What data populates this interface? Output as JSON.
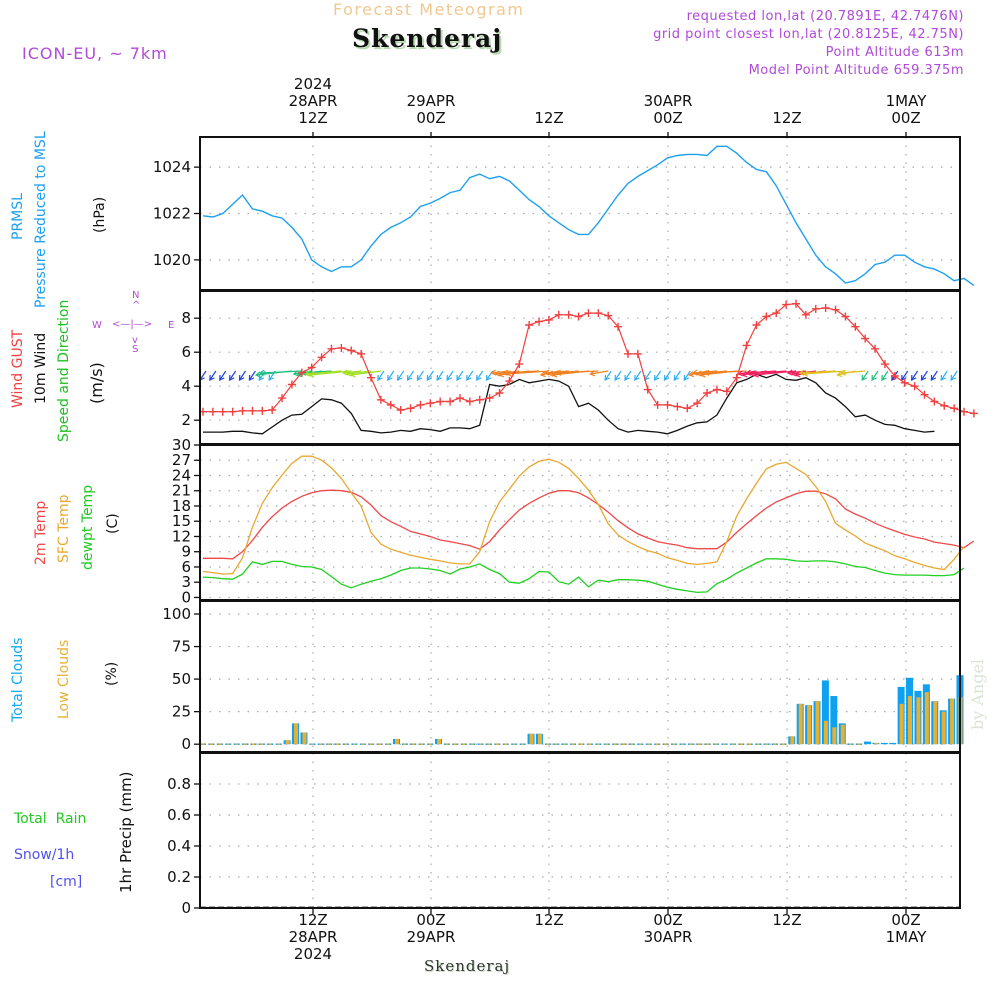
{
  "header": {
    "title": "Forecast Meteogram",
    "station": "Skenderaj",
    "model": "ICON-EU, ~ 7km",
    "requested": "requested lon,lat (20.7891E, 42.7476N)",
    "grid_point": "grid point closest lon,lat (20.8125E, 42.75N)",
    "point_altitude": "Point Altitude 613m",
    "model_altitude": "Model Point Altitude 659.375m"
  },
  "footer": {
    "station": "Skenderaj",
    "credit": "by Angel"
  },
  "top_axis": [
    {
      "l1": "2024",
      "l2": "28APR",
      "l3": "12Z"
    },
    {
      "l1": "",
      "l2": "29APR",
      "l3": "00Z"
    },
    {
      "l1": "",
      "l2": "",
      "l3": "12Z"
    },
    {
      "l1": "",
      "l2": "30APR",
      "l3": "00Z"
    },
    {
      "l1": "",
      "l2": "",
      "l3": "12Z"
    },
    {
      "l1": "",
      "l2": "1MAY",
      "l3": "00Z"
    }
  ],
  "bottom_axis": [
    {
      "l1": "12Z",
      "l2": "28APR",
      "l3": "2024"
    },
    {
      "l1": "00Z",
      "l2": "29APR",
      "l3": ""
    },
    {
      "l1": "12Z",
      "l2": "",
      "l3": ""
    },
    {
      "l1": "00Z",
      "l2": "30APR",
      "l3": ""
    },
    {
      "l1": "12Z",
      "l2": "",
      "l3": ""
    },
    {
      "l1": "00Z",
      "l2": "1MAY",
      "l3": ""
    }
  ],
  "labels": {
    "prmsl": "PRMSL",
    "pressure": "Pressure Reduced to MSL",
    "hpa": "(hPa)",
    "wind_gust": "Wind GUST",
    "wind_10m": "10m Wind",
    "speed_dir": "Speed and Direction",
    "ms": "(m/s)",
    "compass_n": "N",
    "compass_s": "S",
    "compass_w": "W",
    "compass_e": "E",
    "temp2m": "2m Temp",
    "sfc_temp": "SFC Temp",
    "dewpt": "dewpt Temp",
    "c": "(C)",
    "total_clouds": "Total Clouds",
    "low_clouds": "Low Clouds",
    "pct": "(%)",
    "total_rain": "Total  Rain",
    "snow": "Snow/1h",
    "cm": "[cm]",
    "precip": "1hr Precip (mm)"
  },
  "colors": {
    "pressure": "#1ea0f0",
    "gust": "#f04040",
    "wind": "#111111",
    "temp2m": "#f04848",
    "sfc": "#e8a830",
    "dewpt": "#20d020",
    "total_clouds": "#10a0f0",
    "low_clouds": "#e8b030",
    "rain": "#20c820",
    "snow": "#5050f0",
    "label_purple": "#b04ad8"
  },
  "chart_data": [
    {
      "type": "line",
      "title": "PRMSL Pressure Reduced to MSL",
      "ylabel": "(hPa)",
      "ylim": [
        1018.7,
        1025.3
      ],
      "yticks": [
        1020,
        1022,
        1024
      ],
      "time_start": "28APR 01Z",
      "time_step_hours": 1,
      "series": [
        {
          "name": "PRMSL",
          "values": [
            1021.9,
            1021.85,
            1022.0,
            1022.4,
            1022.8,
            1022.2,
            1022.1,
            1021.9,
            1021.8,
            1021.4,
            1020.9,
            1020.0,
            1019.7,
            1019.5,
            1019.7,
            1019.7,
            1020.0,
            1020.6,
            1021.1,
            1021.4,
            1021.6,
            1021.85,
            1022.3,
            1022.45,
            1022.65,
            1022.9,
            1023.0,
            1023.55,
            1023.7,
            1023.5,
            1023.6,
            1023.4,
            1023.0,
            1022.6,
            1022.3,
            1021.9,
            1021.6,
            1021.3,
            1021.1,
            1021.1,
            1021.6,
            1022.2,
            1022.8,
            1023.3,
            1023.6,
            1023.85,
            1024.1,
            1024.4,
            1024.5,
            1024.55,
            1024.55,
            1024.5,
            1024.9,
            1024.9,
            1024.6,
            1024.2,
            1023.9,
            1023.8,
            1023.2,
            1022.4,
            1021.6,
            1020.9,
            1020.2,
            1019.7,
            1019.4,
            1019.0,
            1019.1,
            1019.4,
            1019.8,
            1019.9,
            1020.2,
            1020.2,
            1019.9,
            1019.7,
            1019.6,
            1019.4,
            1019.1,
            1019.2,
            1018.9
          ]
        }
      ]
    },
    {
      "type": "line",
      "title": "Wind GUST / 10m Wind Speed and Direction",
      "ylabel": "(m/s)",
      "ylim": [
        0.6,
        9.6
      ],
      "yticks": [
        2,
        4,
        6,
        8
      ],
      "time_start": "28APR 01Z",
      "time_step_hours": 1,
      "series": [
        {
          "name": "Wind GUST",
          "values": [
            2.5,
            2.5,
            2.5,
            2.5,
            2.55,
            2.55,
            2.55,
            2.6,
            3.3,
            4.1,
            4.8,
            5.1,
            5.7,
            6.2,
            6.25,
            6.1,
            5.9,
            4.5,
            3.2,
            2.9,
            2.6,
            2.7,
            2.9,
            3.0,
            3.1,
            3.1,
            3.3,
            3.1,
            3.2,
            3.3,
            3.6,
            4.3,
            5.3,
            7.6,
            7.8,
            7.9,
            8.2,
            8.2,
            8.1,
            8.3,
            8.3,
            8.15,
            7.5,
            5.9,
            5.9,
            3.8,
            2.9,
            2.9,
            2.8,
            2.7,
            3.0,
            3.6,
            3.8,
            3.7,
            4.5,
            6.4,
            7.6,
            8.1,
            8.3,
            8.8,
            8.85,
            8.2,
            8.55,
            8.6,
            8.5,
            8.1,
            7.5,
            6.8,
            6.2,
            5.3,
            4.6,
            4.2,
            4.0,
            3.5,
            3.1,
            2.85,
            2.7,
            2.5,
            2.4
          ]
        },
        {
          "name": "10m Wind",
          "values": [
            1.3,
            1.3,
            1.3,
            1.35,
            1.35,
            1.25,
            1.2,
            1.6,
            2.0,
            2.3,
            2.35,
            2.8,
            3.25,
            3.2,
            3.0,
            2.4,
            1.4,
            1.35,
            1.25,
            1.3,
            1.4,
            1.35,
            1.5,
            1.45,
            1.35,
            1.55,
            1.55,
            1.5,
            1.7,
            4.1,
            4.0,
            4.1,
            4.4,
            4.2,
            4.3,
            4.4,
            4.3,
            4.0,
            2.8,
            3.0,
            2.6,
            2.0,
            1.5,
            1.3,
            1.4,
            1.35,
            1.3,
            1.2,
            1.4,
            1.65,
            1.85,
            1.9,
            2.3,
            3.3,
            4.2,
            4.4,
            4.7,
            4.5,
            4.7,
            4.4,
            4.35,
            4.5,
            4.2,
            3.6,
            3.3,
            2.8,
            2.2,
            2.3,
            2.0,
            1.75,
            1.7,
            1.5,
            1.4,
            1.3,
            1.35
          ]
        }
      ],
      "wind_direction_colors": [
        "#2040e0",
        "#30b0f0",
        "#20c080",
        "#a0e020",
        "#e0c020",
        "#f08020",
        "#f02060"
      ]
    },
    {
      "type": "line",
      "title": "2m Temp / SFC Temp / dewpt Temp",
      "ylabel": "(C)",
      "ylim": [
        -0.5,
        30
      ],
      "yticks": [
        0,
        3,
        6,
        9,
        12,
        15,
        18,
        21,
        24,
        27,
        30
      ],
      "time_start": "28APR 01Z",
      "time_step_hours": 1,
      "series": [
        {
          "name": "2m Temp",
          "values": [
            7.7,
            7.7,
            7.7,
            7.6,
            9.0,
            11.2,
            13.8,
            15.9,
            17.6,
            18.9,
            19.9,
            20.6,
            21.0,
            21.1,
            21.0,
            20.7,
            19.8,
            18.2,
            16.1,
            14.9,
            14.0,
            13.0,
            12.5,
            12.0,
            11.3,
            11.0,
            10.6,
            10.2,
            9.5,
            11.0,
            13.3,
            15.3,
            17.2,
            18.5,
            19.6,
            20.5,
            21.0,
            21.0,
            20.6,
            19.6,
            18.3,
            16.8,
            15.1,
            13.7,
            12.5,
            11.7,
            11.0,
            10.6,
            10.3,
            9.8,
            9.6,
            9.6,
            9.6,
            10.9,
            12.8,
            14.5,
            16.1,
            17.6,
            18.8,
            19.6,
            20.4,
            20.9,
            20.9,
            20.4,
            19.4,
            17.4,
            16.4,
            15.6,
            14.6,
            13.8,
            13.1,
            12.4,
            11.9,
            11.5,
            10.9,
            10.6,
            10.3,
            9.8,
            11.1
          ]
        },
        {
          "name": "SFC Temp",
          "values": [
            5.1,
            4.9,
            4.6,
            4.7,
            7.8,
            13.8,
            18.5,
            21.6,
            24.1,
            26.4,
            27.8,
            27.8,
            27.0,
            25.5,
            23.4,
            20.6,
            18.0,
            12.8,
            10.5,
            9.5,
            8.9,
            8.3,
            7.9,
            7.5,
            7.2,
            6.8,
            6.6,
            6.6,
            9.0,
            14.9,
            18.8,
            21.3,
            23.9,
            25.7,
            26.8,
            27.2,
            26.6,
            25.4,
            23.4,
            21.1,
            18.3,
            14.5,
            12.3,
            11.0,
            10.0,
            9.2,
            8.7,
            7.8,
            7.3,
            6.7,
            6.5,
            6.7,
            7.0,
            11.0,
            16.0,
            19.4,
            22.5,
            25.3,
            26.2,
            26.6,
            25.4,
            24.2,
            21.8,
            18.9,
            14.6,
            13.3,
            12.1,
            10.7,
            9.9,
            9.2,
            8.2,
            7.6,
            6.9,
            6.3,
            5.8,
            5.5,
            7.5,
            10.0
          ]
        },
        {
          "name": "dewpt Temp",
          "values": [
            4.0,
            3.9,
            3.7,
            3.6,
            4.6,
            7.0,
            6.5,
            7.1,
            7.1,
            6.5,
            6.1,
            6.0,
            5.5,
            4.1,
            2.6,
            1.9,
            2.6,
            3.2,
            3.7,
            4.4,
            5.3,
            5.8,
            5.8,
            5.6,
            5.3,
            4.6,
            5.6,
            6.0,
            6.6,
            5.5,
            4.7,
            3.0,
            2.8,
            3.7,
            5.1,
            5.0,
            3.1,
            2.6,
            4.0,
            2.1,
            3.4,
            3.1,
            3.5,
            3.5,
            3.4,
            3.2,
            2.6,
            2.0,
            1.6,
            1.3,
            1.0,
            1.1,
            2.7,
            3.6,
            4.8,
            5.8,
            6.8,
            7.6,
            7.6,
            7.5,
            7.2,
            7.1,
            7.2,
            7.2,
            7.0,
            6.6,
            6.1,
            5.9,
            5.3,
            4.8,
            4.5,
            4.4,
            4.4,
            4.4,
            4.3,
            4.3,
            4.5,
            5.8
          ]
        }
      ]
    },
    {
      "type": "bar",
      "title": "Total Clouds / Low Clouds",
      "ylabel": "(%)",
      "ylim": [
        -6,
        110
      ],
      "yticks": [
        0,
        25,
        50,
        75,
        100
      ],
      "time_start": "28APR 01Z",
      "time_step_hours": 1,
      "series": [
        {
          "name": "Total Clouds",
          "values": [
            0,
            0,
            0,
            0,
            0,
            0,
            0,
            0,
            0,
            0,
            3,
            16,
            9,
            0,
            0,
            0,
            0,
            0,
            0,
            0,
            0,
            0,
            0,
            4,
            0,
            0,
            0,
            0,
            4,
            0,
            0,
            0,
            0,
            0,
            0,
            0,
            0,
            0,
            0,
            8,
            8,
            0,
            0,
            0,
            0,
            0,
            0,
            0,
            0,
            0,
            0,
            0,
            0,
            0,
            0,
            0,
            0,
            0,
            0,
            0,
            0,
            0,
            0,
            0,
            0,
            0,
            0,
            0,
            0,
            0,
            6,
            31,
            30,
            33,
            49,
            37,
            16,
            0,
            0,
            2,
            1,
            1,
            1,
            44,
            51,
            41,
            46,
            33,
            26,
            35,
            53
          ]
        },
        {
          "name": "Low Clouds",
          "values": [
            0,
            0,
            0,
            0,
            0,
            0,
            0,
            0,
            0,
            0,
            3,
            16,
            9,
            0,
            0,
            0,
            0,
            0,
            0,
            0,
            0,
            0,
            0,
            4,
            0,
            0,
            0,
            0,
            4,
            0,
            0,
            0,
            0,
            0,
            0,
            0,
            0,
            0,
            0,
            8,
            8,
            0,
            0,
            0,
            0,
            0,
            0,
            0,
            0,
            0,
            0,
            0,
            0,
            0,
            0,
            0,
            0,
            0,
            0,
            0,
            0,
            0,
            0,
            0,
            0,
            0,
            0,
            0,
            0,
            0,
            6,
            31,
            30,
            33,
            18,
            13,
            15,
            0,
            0,
            0,
            1,
            0,
            0,
            31,
            37,
            36,
            40,
            33,
            25,
            35,
            36
          ]
        }
      ]
    },
    {
      "type": "bar",
      "title": "Total Rain / Snow 1h",
      "ylabel": "1hr Precip (mm)",
      "ylim": [
        0,
        1.0
      ],
      "yticks": [
        0,
        0.2,
        0.4,
        0.6,
        0.8
      ],
      "yticklabels": [
        "0",
        "0.2",
        "0.4",
        "0.6",
        "0.8"
      ],
      "series": [
        {
          "name": "Total Rain",
          "values": []
        },
        {
          "name": "Snow/1h",
          "values": []
        }
      ]
    }
  ]
}
